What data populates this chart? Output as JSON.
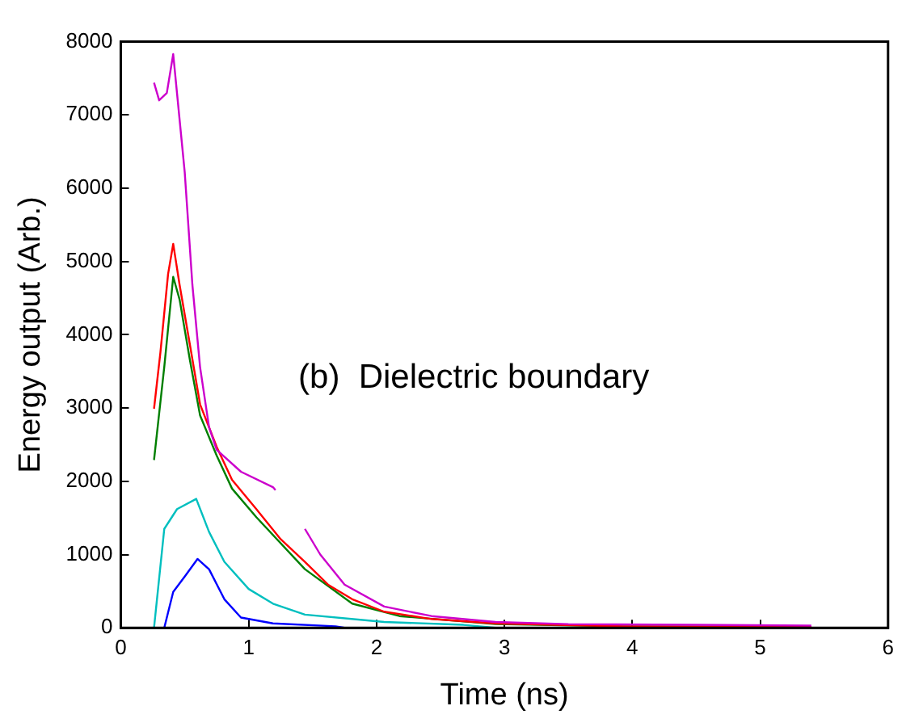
{
  "chart_data": {
    "type": "line",
    "xlabel": "Time (ns)",
    "ylabel": "Energy output (Arb.)",
    "xlim": [
      0,
      6
    ],
    "xticks": [
      0,
      1,
      2,
      3,
      4,
      5,
      6
    ],
    "ylim": [
      0,
      8000
    ],
    "yticks": [
      0,
      1000,
      2000,
      3000,
      4000,
      5000,
      6000,
      7000,
      8000
    ],
    "grid": false,
    "legend": false,
    "marker": "none",
    "line_style": "solid",
    "annotations": [
      "(b)  Dielectric boundary"
    ],
    "series": [
      {
        "color": "#cc00cc",
        "x": [
          0.26,
          0.3,
          0.33,
          0.36,
          0.41,
          0.5,
          0.56,
          0.62,
          0.69,
          0.75,
          0.94,
          1.19,
          1.21,
          1.3,
          1.44,
          1.56,
          1.75,
          2.06,
          2.43,
          2.93,
          3.5,
          4.5,
          5.4
        ],
        "values": [
          7440,
          7200,
          7250,
          7300,
          7830,
          6220,
          4680,
          3560,
          2740,
          2430,
          2130,
          1920,
          1880,
          null,
          1350,
          1000,
          590,
          290,
          160,
          80,
          50,
          40,
          30
        ]
      },
      {
        "color": "#ff0000",
        "x": [
          0.26,
          0.31,
          0.37,
          0.41,
          0.46,
          0.54,
          0.62,
          0.75,
          0.87,
          1.06,
          1.25,
          1.44,
          1.62,
          1.81,
          2.06,
          2.43,
          2.93,
          3.93,
          5.4
        ],
        "values": [
          2990,
          3760,
          4830,
          5240,
          4680,
          3870,
          3050,
          2470,
          2020,
          1620,
          1210,
          900,
          590,
          390,
          220,
          120,
          60,
          20,
          10
        ]
      },
      {
        "color": "#007f00",
        "x": [
          0.26,
          0.34,
          0.41,
          0.46,
          0.54,
          0.62,
          0.75,
          0.87,
          1.06,
          1.44,
          1.81,
          2.18,
          2.93,
          3.93,
          5.4
        ],
        "values": [
          2290,
          3560,
          4790,
          4480,
          3660,
          2900,
          2350,
          1900,
          1510,
          800,
          330,
          160,
          50,
          20,
          10
        ]
      },
      {
        "color": "#00bfbf",
        "x": [
          0.26,
          0.34,
          0.44,
          0.59,
          0.69,
          0.81,
          1.0,
          1.19,
          1.44,
          2.06,
          2.68,
          2.93
        ],
        "values": [
          0,
          1350,
          1620,
          1760,
          1310,
          900,
          530,
          330,
          180,
          80,
          40,
          0
        ]
      },
      {
        "color": "#0000ff",
        "x": [
          0.34,
          0.41,
          0.5,
          0.6,
          0.69,
          0.81,
          0.94,
          1.19,
          1.68,
          1.75
        ],
        "values": [
          0,
          490,
          700,
          940,
          800,
          390,
          140,
          60,
          20,
          0
        ]
      }
    ]
  }
}
